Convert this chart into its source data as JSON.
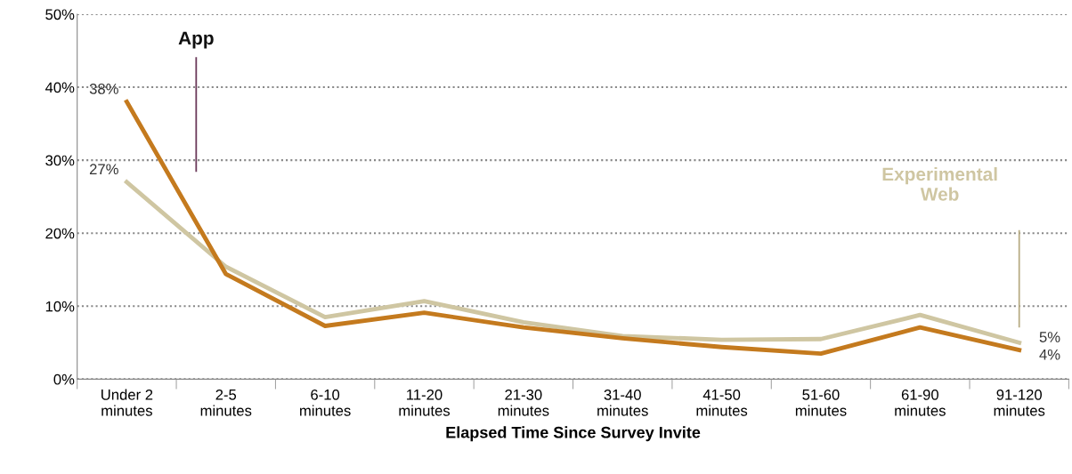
{
  "chart_data": {
    "type": "line",
    "xlabel": "Elapsed Time Since Survey Invite",
    "categories": [
      "Under 2\nminutes",
      "2-5\nminutes",
      "6-10\nminutes",
      "11-20\nminutes",
      "21-30\nminutes",
      "31-40\nminutes",
      "41-50\nminutes",
      "51-60\nminutes",
      "61-90\nminutes",
      "91-120\nminutes"
    ],
    "series": [
      {
        "name": "Experimental\nWeb",
        "color": "#cfc6a2",
        "values": [
          27,
          15.4,
          8.5,
          10.7,
          7.8,
          5.9,
          5.4,
          5.5,
          8.8,
          5
        ],
        "value_labels": [
          "27%",
          null,
          null,
          null,
          null,
          null,
          null,
          null,
          null,
          "5%"
        ]
      },
      {
        "name": "App",
        "color": "#c47a1e",
        "values": [
          38,
          14.4,
          7.3,
          9.1,
          7.1,
          5.6,
          4.4,
          3.5,
          7.1,
          4
        ],
        "value_labels": [
          "38%",
          null,
          null,
          null,
          null,
          null,
          null,
          null,
          null,
          "4%"
        ]
      }
    ],
    "ylim": [
      0,
      50
    ],
    "yticks": [
      {
        "value": 0,
        "label": "0%"
      },
      {
        "value": 10,
        "label": "10%"
      },
      {
        "value": 20,
        "label": "20%"
      },
      {
        "value": 30,
        "label": "30%"
      },
      {
        "value": 40,
        "label": "40%"
      },
      {
        "value": 50,
        "label": "50%"
      }
    ],
    "grid": "y",
    "legend": false,
    "marker": "none",
    "line_style": "solid"
  }
}
